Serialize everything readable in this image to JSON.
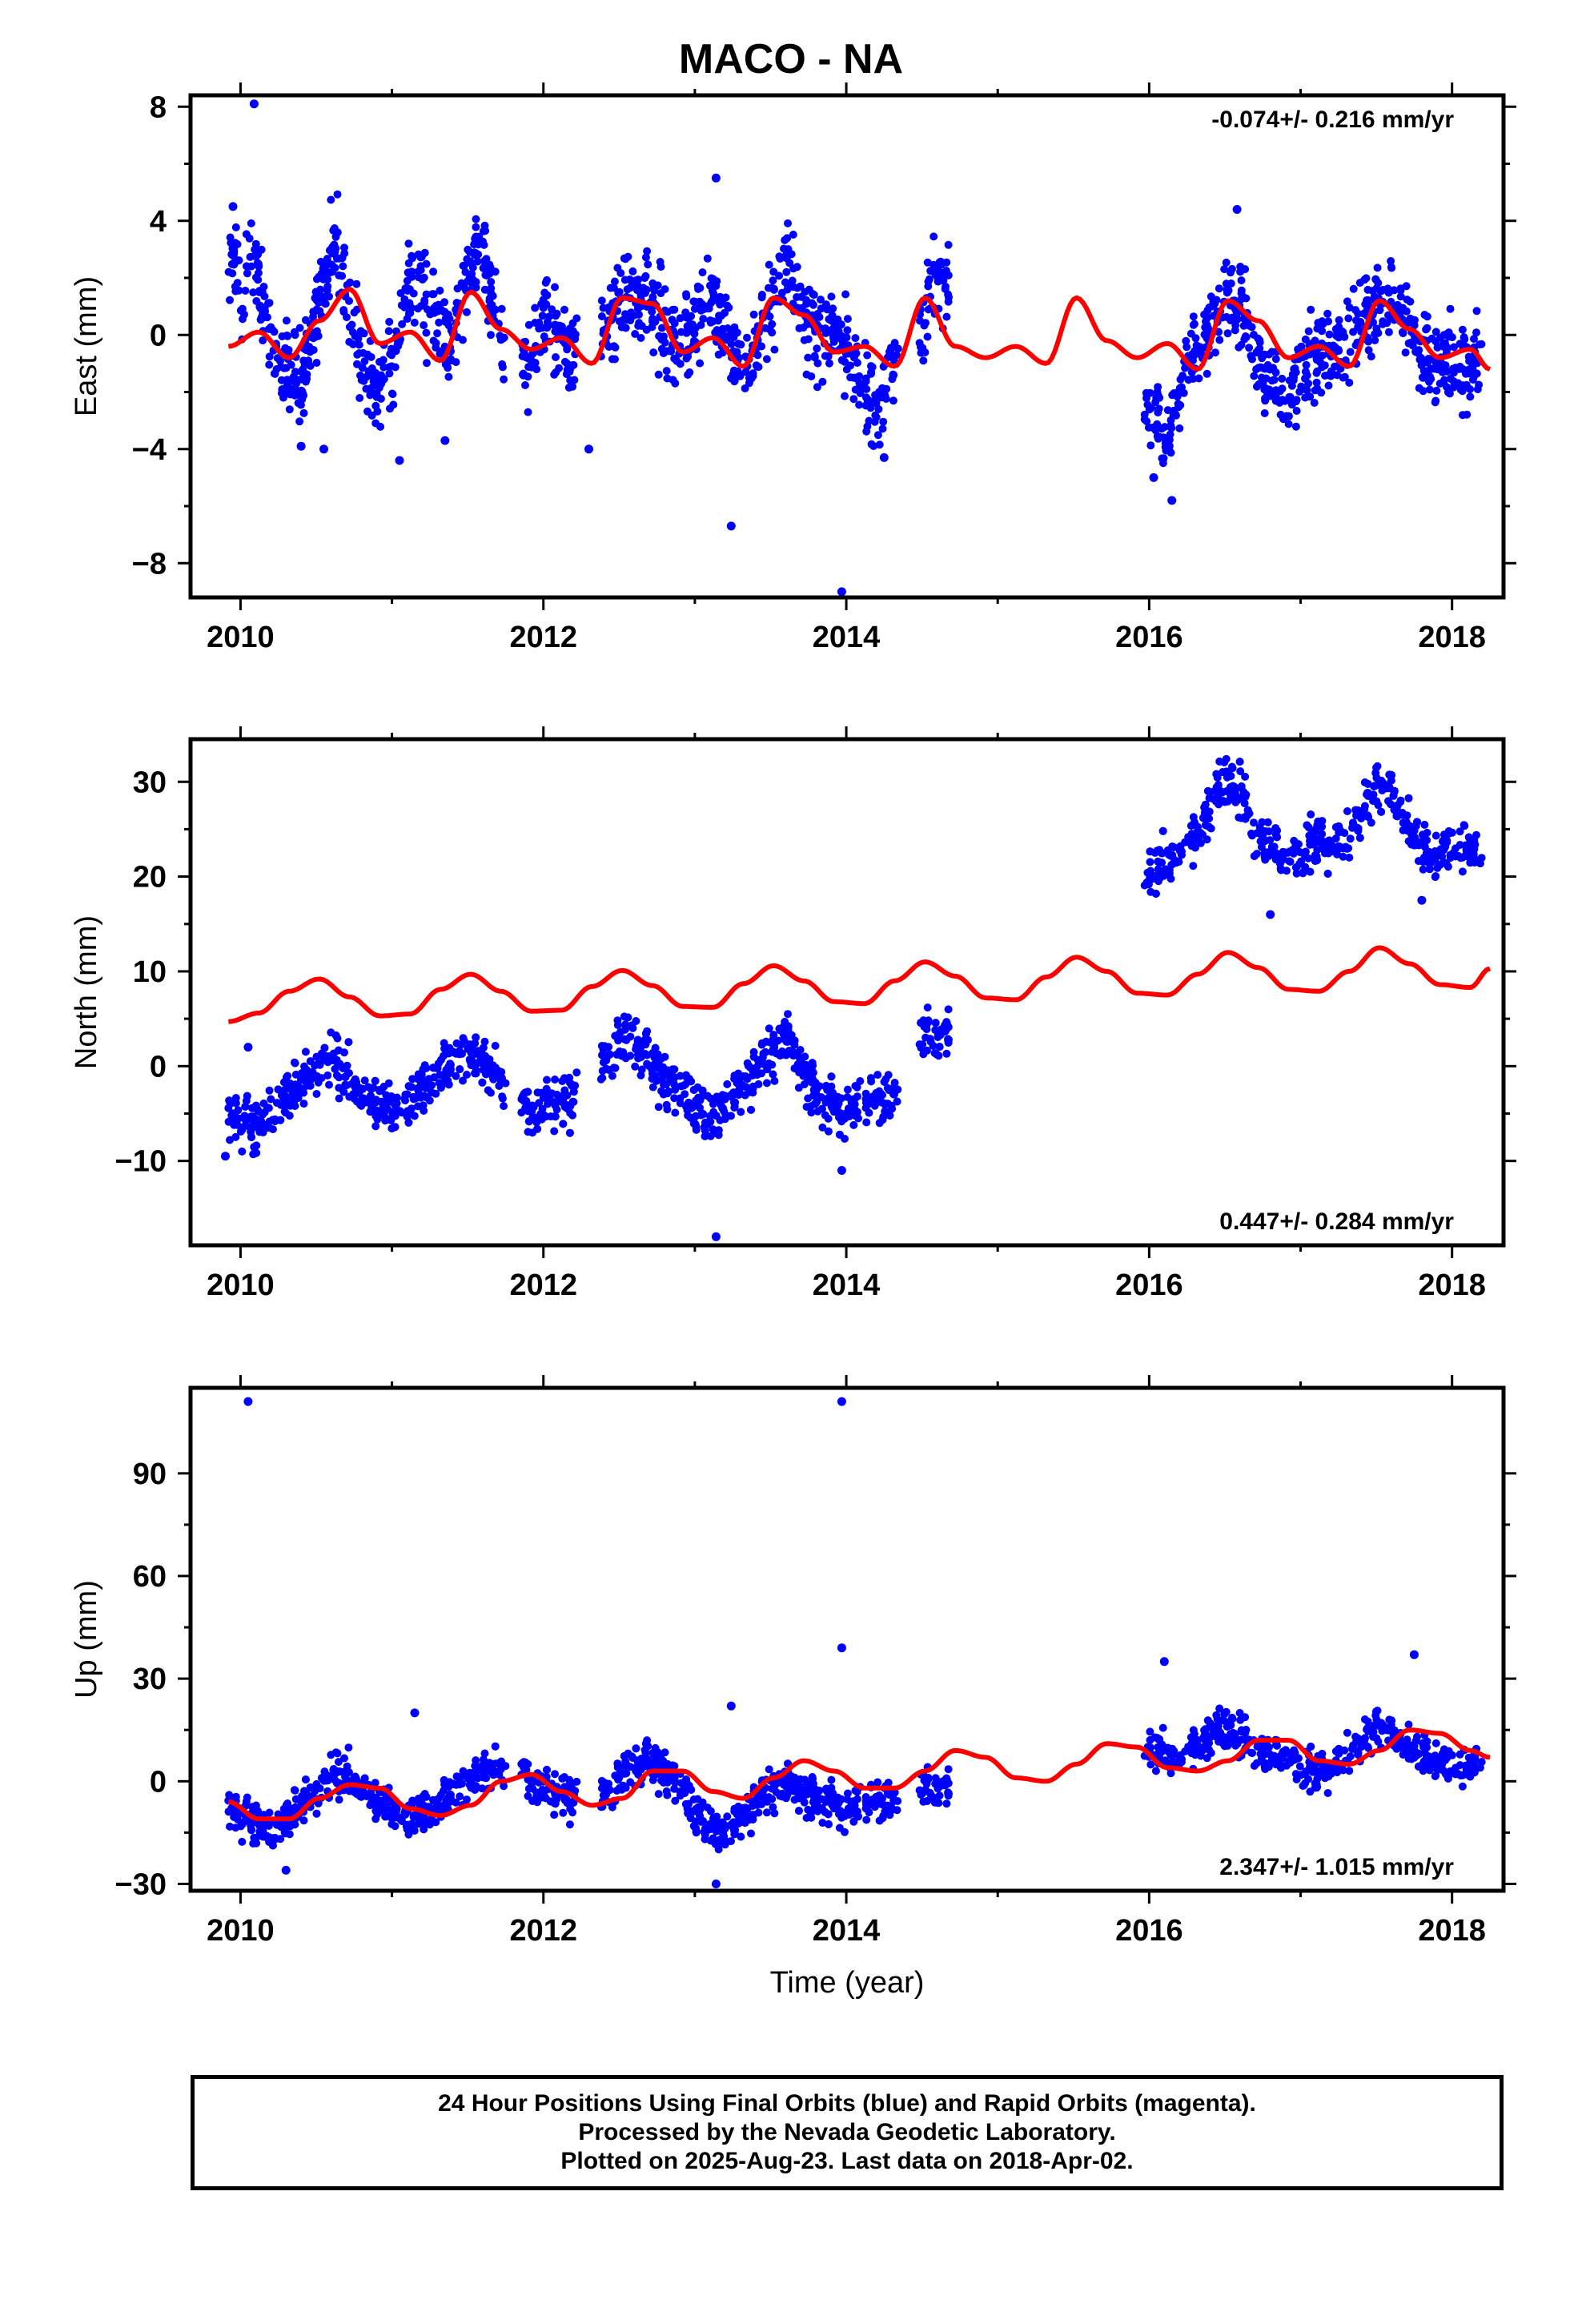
{
  "title": "MACO - NA",
  "xlabel": "Time (year)",
  "footer": {
    "line1": "24 Hour Positions Using Final Orbits (blue) and Rapid Orbits (magenta).",
    "line2": "Processed by the Nevada Geodetic Laboratory.",
    "line3": "Plotted on 2025-Aug-23. Last data on 2018-Apr-02."
  },
  "colors": {
    "data": "#0000ff",
    "model": "#ff0000",
    "frame": "#000000"
  },
  "chart_data": [
    {
      "type": "scatter",
      "ylabel": "East (mm)",
      "rate_label": "-0.074+/- 0.216 mm/yr",
      "rate_position": "top-right",
      "xlim": [
        2009.67,
        2018.34
      ],
      "ylim": [
        -9.2,
        8.4
      ],
      "xticks": [
        2010,
        2012,
        2014,
        2016,
        2018
      ],
      "yticks": [
        -8,
        -4,
        0,
        4,
        8
      ],
      "yticklabels": [
        "−8",
        "−4",
        "0",
        "4",
        "8"
      ],
      "series": [
        {
          "kind": "points",
          "x": [
            2009.92,
            2009.96,
            2010.0,
            2010.04,
            2010.08,
            2010.12,
            2010.2,
            2010.3,
            2010.4,
            2010.5,
            2010.6,
            2010.65,
            2010.7,
            2010.8,
            2010.9,
            2011.0,
            2011.1,
            2011.2,
            2011.3,
            2011.4,
            2011.5,
            2011.6,
            2011.7,
            2011.8,
            2011.9,
            2012.0,
            2012.1,
            2012.15,
            2012.4,
            2012.5,
            2012.6,
            2012.7,
            2012.8,
            2012.9,
            2013.0,
            2013.1,
            2013.2,
            2013.3,
            2013.4,
            2013.5,
            2013.6,
            2013.65,
            2013.7,
            2013.8,
            2013.9,
            2014.0,
            2014.1,
            2014.2,
            2014.3,
            2014.5,
            2014.55,
            2014.6,
            2015.98,
            2016.05,
            2016.1,
            2016.2,
            2016.3,
            2016.4,
            2016.5,
            2016.6,
            2016.7,
            2016.8,
            2016.9,
            2017.0,
            2017.1,
            2017.2,
            2017.3,
            2017.4,
            2017.5,
            2017.6,
            2017.7,
            2017.8,
            2017.9,
            2018.0,
            2018.1,
            2018.2
          ],
          "y": [
            2.4,
            2.9,
            1.6,
            2.3,
            3.3,
            1.7,
            -0.3,
            -1.0,
            -1.6,
            0.9,
            2.8,
            3.1,
            1.2,
            -0.9,
            -1.8,
            -1.2,
            1.6,
            1.8,
            0.4,
            -0.6,
            2.3,
            2.9,
            0.1,
            -0.8,
            -1.2,
            0.8,
            0.3,
            -0.9,
            0.2,
            1.0,
            1.7,
            1.3,
            0.2,
            -0.6,
            0.6,
            1.6,
            0.2,
            -1.3,
            -0.4,
            1.1,
            2.4,
            1.9,
            0.7,
            -0.1,
            0.3,
            -0.4,
            -1.9,
            -2.8,
            -0.7,
            -0.4,
            1.6,
            2.1,
            -2.4,
            -2.9,
            -3.6,
            -2.0,
            -0.6,
            0.5,
            1.4,
            0.9,
            -0.6,
            -1.7,
            -2.1,
            -1.3,
            -0.9,
            -0.8,
            -0.4,
            0.6,
            1.1,
            1.4,
            0.7,
            -0.7,
            -1.2,
            -1.0,
            -1.3,
            -0.4
          ]
        },
        {
          "kind": "outliers",
          "x": [
            2010.09,
            2013.14,
            2013.24,
            2013.97,
            2009.95,
            2010.4,
            2010.55,
            2011.05,
            2011.35,
            2012.3,
            2014.25,
            2016.15,
            2016.03,
            2016.58
          ],
          "y": [
            8.1,
            5.5,
            -6.7,
            -9.0,
            4.5,
            -3.9,
            -4.0,
            -4.4,
            -3.7,
            -4.0,
            -4.3,
            -5.8,
            -5.0,
            4.4
          ]
        },
        {
          "kind": "model",
          "x": [
            2009.92,
            2010.12,
            2010.32,
            2010.52,
            2010.72,
            2010.92,
            2011.12,
            2011.32,
            2011.52,
            2011.72,
            2011.92,
            2012.12,
            2012.32,
            2012.52,
            2012.72,
            2012.92,
            2013.12,
            2013.32,
            2013.52,
            2013.72,
            2013.92,
            2014.12,
            2014.32,
            2014.52,
            2014.72,
            2014.92,
            2015.12,
            2015.32,
            2015.52,
            2015.72,
            2015.92,
            2016.12,
            2016.32,
            2016.52,
            2016.72,
            2016.92,
            2017.12,
            2017.32,
            2017.52,
            2017.72,
            2017.92,
            2018.12,
            2018.25
          ],
          "y": [
            -0.4,
            0.1,
            -0.8,
            0.5,
            1.6,
            -0.3,
            0.1,
            -0.9,
            1.5,
            0.2,
            -0.5,
            -0.1,
            -1.0,
            1.3,
            1.1,
            -0.6,
            -0.1,
            -1.1,
            1.3,
            0.7,
            -0.6,
            -0.4,
            -1.1,
            1.3,
            -0.4,
            -0.8,
            -0.4,
            -1.0,
            1.3,
            -0.2,
            -0.8,
            -0.3,
            -1.2,
            1.2,
            0.5,
            -0.8,
            -0.4,
            -1.1,
            1.2,
            0.2,
            -0.8,
            -0.5,
            -1.2
          ]
        }
      ]
    },
    {
      "type": "scatter",
      "ylabel": "North (mm)",
      "rate_label": "0.447+/- 0.284 mm/yr",
      "rate_position": "bottom-right",
      "xlim": [
        2009.67,
        2018.34
      ],
      "ylim": [
        -18.9,
        34.5
      ],
      "xticks": [
        2010,
        2012,
        2014,
        2016,
        2018
      ],
      "yticks": [
        -10,
        0,
        10,
        20,
        30
      ],
      "yticklabels": [
        "−10",
        "0",
        "10",
        "20",
        "30"
      ],
      "series": [
        {
          "kind": "points",
          "x": [
            2009.92,
            2010.0,
            2010.1,
            2010.2,
            2010.3,
            2010.4,
            2010.5,
            2010.6,
            2010.7,
            2010.8,
            2010.9,
            2011.0,
            2011.1,
            2011.2,
            2011.3,
            2011.4,
            2011.5,
            2011.6,
            2011.7,
            2011.85,
            2011.95,
            2012.05,
            2012.15,
            2012.4,
            2012.5,
            2012.6,
            2012.7,
            2012.8,
            2012.9,
            2013.0,
            2013.1,
            2013.2,
            2013.3,
            2013.4,
            2013.5,
            2013.6,
            2013.7,
            2013.8,
            2013.9,
            2014.0,
            2014.1,
            2014.2,
            2014.3,
            2014.5,
            2014.55,
            2014.62,
            2016.0,
            2016.1,
            2016.2,
            2016.3,
            2016.4,
            2016.5,
            2016.6,
            2016.7,
            2016.8,
            2016.9,
            2017.0,
            2017.1,
            2017.2,
            2017.3,
            2017.4,
            2017.5,
            2017.6,
            2017.7,
            2017.8,
            2017.9,
            2018.0,
            2018.1,
            2018.2
          ],
          "y": [
            -5.5,
            -5.5,
            -6.5,
            -4.5,
            -3.0,
            -1.5,
            0.5,
            0.0,
            -1.0,
            -3.0,
            -4.0,
            -4.5,
            -3.5,
            -2.5,
            -1.0,
            0.5,
            1.5,
            0.5,
            -1.0,
            -4.5,
            -4.0,
            -3.5,
            -4.0,
            0.5,
            2.5,
            3.0,
            0.5,
            -1.5,
            -3.0,
            -4.5,
            -5.5,
            -4.0,
            -2.0,
            -0.5,
            1.5,
            3.0,
            0.0,
            -3.0,
            -4.0,
            -4.5,
            -4.0,
            -3.5,
            -3.0,
            2.5,
            4.0,
            3.0,
            20.5,
            21.5,
            22.5,
            24.0,
            27.5,
            30.5,
            28.5,
            24.5,
            23.0,
            22.0,
            22.5,
            23.5,
            23.5,
            24.0,
            27.0,
            29.5,
            29.0,
            25.5,
            23.0,
            22.0,
            23.0,
            23.5,
            22.5
          ]
        },
        {
          "kind": "outliers",
          "x": [
            2009.9,
            2010.05,
            2013.14,
            2013.97,
            2016.8,
            2017.8
          ],
          "y": [
            -9.5,
            2.0,
            -18.0,
            -11.0,
            16.0,
            17.5
          ]
        },
        {
          "kind": "model",
          "x": [
            2009.92,
            2010.12,
            2010.32,
            2010.52,
            2010.72,
            2010.92,
            2011.12,
            2011.32,
            2011.52,
            2011.72,
            2011.92,
            2012.12,
            2012.32,
            2012.52,
            2012.72,
            2012.92,
            2013.12,
            2013.32,
            2013.52,
            2013.72,
            2013.92,
            2014.12,
            2014.32,
            2014.52,
            2014.72,
            2014.92,
            2015.12,
            2015.32,
            2015.52,
            2015.72,
            2015.92,
            2016.12,
            2016.32,
            2016.52,
            2016.72,
            2016.92,
            2017.12,
            2017.32,
            2017.52,
            2017.72,
            2017.92,
            2018.12,
            2018.25
          ],
          "y": [
            4.7,
            5.6,
            7.9,
            9.2,
            7.3,
            5.3,
            5.5,
            8.1,
            9.7,
            7.9,
            5.8,
            5.9,
            8.4,
            10.1,
            8.5,
            6.3,
            6.2,
            8.7,
            10.6,
            9.0,
            6.8,
            6.6,
            9.0,
            11.0,
            9.5,
            7.2,
            7.0,
            9.4,
            11.5,
            10.0,
            7.7,
            7.5,
            9.7,
            12.0,
            10.4,
            8.1,
            7.9,
            10.0,
            12.5,
            10.8,
            8.6,
            8.3,
            10.3
          ]
        }
      ]
    },
    {
      "type": "scatter",
      "ylabel": "Up (mm)",
      "rate_label": "2.347+/- 1.015 mm/yr",
      "rate_position": "bottom-right",
      "xlim": [
        2009.67,
        2018.34
      ],
      "ylim": [
        -32,
        115
      ],
      "xticks": [
        2010,
        2012,
        2014,
        2016,
        2018
      ],
      "yticks": [
        -30,
        0,
        30,
        60,
        90
      ],
      "yticklabels": [
        "−30",
        "0",
        "30",
        "60",
        "90"
      ],
      "series": [
        {
          "kind": "points",
          "x": [
            2009.92,
            2010.0,
            2010.1,
            2010.2,
            2010.3,
            2010.4,
            2010.5,
            2010.6,
            2010.7,
            2010.8,
            2010.9,
            2011.0,
            2011.1,
            2011.2,
            2011.3,
            2011.4,
            2011.5,
            2011.6,
            2011.7,
            2011.85,
            2011.95,
            2012.05,
            2012.15,
            2012.4,
            2012.5,
            2012.6,
            2012.7,
            2012.8,
            2012.9,
            2013.0,
            2013.1,
            2013.2,
            2013.3,
            2013.4,
            2013.5,
            2013.6,
            2013.7,
            2013.8,
            2013.9,
            2014.0,
            2014.1,
            2014.2,
            2014.3,
            2014.5,
            2014.55,
            2014.62,
            2016.0,
            2016.1,
            2016.2,
            2016.3,
            2016.4,
            2016.5,
            2016.6,
            2016.7,
            2016.8,
            2016.9,
            2017.0,
            2017.1,
            2017.2,
            2017.3,
            2017.4,
            2017.5,
            2017.6,
            2017.7,
            2017.8,
            2017.9,
            2018.0,
            2018.1,
            2018.2
          ],
          "y": [
            -8,
            -10,
            -12,
            -14,
            -11,
            -6,
            -2,
            0,
            2,
            -2,
            -6,
            -8,
            -10,
            -9,
            -8,
            -3,
            0,
            3,
            4,
            3,
            0,
            -2,
            -5,
            -4,
            0,
            5,
            6,
            3,
            -2,
            -10,
            -13,
            -15,
            -10,
            -6,
            -2,
            -1,
            -3,
            -5,
            -6,
            -8,
            -7,
            -6,
            -5,
            -3,
            -1,
            -2,
            10,
            8,
            6,
            10,
            14,
            16,
            12,
            10,
            6,
            8,
            4,
            2,
            4,
            8,
            12,
            16,
            14,
            10,
            8,
            6,
            4,
            5,
            7
          ]
        },
        {
          "kind": "outliers",
          "x": [
            2010.05,
            2013.97,
            2013.97,
            2013.14,
            2016.1,
            2013.24,
            2010.3,
            2011.15,
            2017.75
          ],
          "y": [
            111,
            111,
            39,
            -30,
            35,
            22,
            -26,
            20,
            37
          ]
        },
        {
          "kind": "model",
          "x": [
            2009.92,
            2010.12,
            2010.32,
            2010.52,
            2010.72,
            2010.92,
            2011.12,
            2011.32,
            2011.52,
            2011.72,
            2011.92,
            2012.12,
            2012.32,
            2012.52,
            2012.72,
            2012.92,
            2013.12,
            2013.32,
            2013.52,
            2013.72,
            2013.92,
            2014.12,
            2014.32,
            2014.52,
            2014.72,
            2014.92,
            2015.12,
            2015.32,
            2015.52,
            2015.72,
            2015.92,
            2016.12,
            2016.32,
            2016.52,
            2016.72,
            2016.92,
            2017.12,
            2017.32,
            2017.52,
            2017.72,
            2017.92,
            2018.12,
            2018.25
          ],
          "y": [
            -6,
            -11,
            -11,
            -5,
            -1,
            -2,
            -8,
            -10,
            -7,
            0,
            2,
            -3,
            -7,
            -5,
            3,
            3,
            -3,
            -5,
            1,
            6,
            3,
            -2,
            -2,
            3,
            9,
            7,
            1,
            0,
            5,
            11,
            10,
            4,
            3,
            6,
            12,
            12,
            6,
            5,
            9,
            15,
            14,
            9,
            7
          ]
        }
      ]
    }
  ]
}
